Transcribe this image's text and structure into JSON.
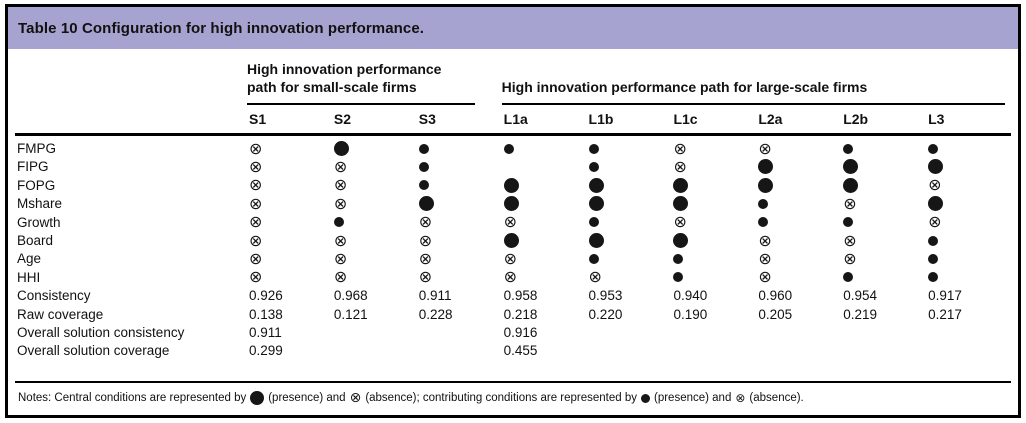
{
  "title": "Table 10 Configuration for high innovation performance.",
  "groups": [
    {
      "label": "High innovation performance path for small-scale firms",
      "columns": [
        "S1",
        "S2",
        "S3"
      ]
    },
    {
      "label": "High innovation performance path for large-scale firms",
      "columns": [
        "L1a",
        "L1b",
        "L1c",
        "L2a",
        "L2b",
        "L3"
      ]
    }
  ],
  "columns": [
    "S1",
    "S2",
    "S3",
    "L1a",
    "L1b",
    "L1c",
    "L2a",
    "L2b",
    "L3"
  ],
  "symbols": {
    "absence_glyph": "⊗",
    "legend": {
      "CP": "central-condition-presence-large-filled-circle",
      "p": "contributing-condition-presence-small-filled-circle",
      "a": "absence-circled-times",
      "": "blank"
    }
  },
  "rows": [
    {
      "label": "FMPG",
      "cells": [
        "a",
        "CP",
        "p",
        "p",
        "p",
        "a",
        "a",
        "p",
        "p"
      ]
    },
    {
      "label": "FIPG",
      "cells": [
        "a",
        "a",
        "p",
        "",
        "p",
        "a",
        "CP",
        "CP",
        "CP"
      ]
    },
    {
      "label": "FOPG",
      "cells": [
        "a",
        "a",
        "p",
        "CP",
        "CP",
        "CP",
        "CP",
        "CP",
        "a"
      ]
    },
    {
      "label": "Mshare",
      "cells": [
        "a",
        "a",
        "CP",
        "CP",
        "CP",
        "CP",
        "p",
        "a",
        "CP"
      ]
    },
    {
      "label": "Growth",
      "cells": [
        "a",
        "p",
        "a",
        "a",
        "p",
        "a",
        "p",
        "p",
        "a"
      ]
    },
    {
      "label": "Board",
      "cells": [
        "a",
        "a",
        "a",
        "CP",
        "CP",
        "CP",
        "a",
        "a",
        "p"
      ]
    },
    {
      "label": "Age",
      "cells": [
        "a",
        "a",
        "a",
        "a",
        "p",
        "p",
        "a",
        "a",
        "p"
      ]
    },
    {
      "label": "HHI",
      "cells": [
        "a",
        "a",
        "a",
        "a",
        "a",
        "p",
        "a",
        "p",
        "p"
      ]
    },
    {
      "label": "Consistency",
      "cells": [
        "0.926",
        "0.968",
        "0.911",
        "0.958",
        "0.953",
        "0.940",
        "0.960",
        "0.954",
        "0.917"
      ]
    },
    {
      "label": "Raw coverage",
      "cells": [
        "0.138",
        "0.121",
        "0.228",
        "0.218",
        "0.220",
        "0.190",
        "0.205",
        "0.219",
        "0.217"
      ]
    },
    {
      "label": "Overall solution consistency",
      "cells": [
        "0.911",
        "",
        "",
        "0.916",
        "",
        "",
        "",
        "",
        ""
      ]
    },
    {
      "label": "Overall solution coverage",
      "cells": [
        "0.299",
        "",
        "",
        "0.455",
        "",
        "",
        "",
        "",
        ""
      ]
    }
  ],
  "notes": {
    "part1": "Notes: Central conditions are represented by",
    "part2": "(presence) and",
    "part3": "(absence); contributing conditions are represented by",
    "part4": "(presence) and",
    "part5": "(absence)."
  }
}
